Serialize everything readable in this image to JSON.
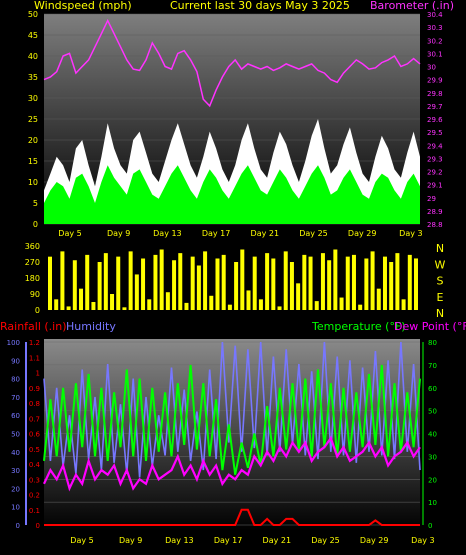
{
  "colors": {
    "wind_gust": "#ffffff",
    "wind_avg": "#00ff00",
    "barometer": "#ff33ff",
    "direction": "#ffff00",
    "rain": "#ff0000",
    "humidity": "#7777ff",
    "temperature": "#00ff00",
    "dew_point": "#ff00ff",
    "title": "#ffff00",
    "axis_text": "#ffff00"
  },
  "chart_data": [
    {
      "type": "area",
      "title": "Current last 30 days May 3 2025",
      "left_label": "Windspeed (mph)",
      "right_label": "Barometer (.in)",
      "x_ticks": [
        "Day 5",
        "Day 9",
        "Day 13",
        "Day 17",
        "Day 21",
        "Day 25",
        "Day 29",
        "Day 3"
      ],
      "y_left_ticks": [
        "0",
        "5",
        "10",
        "15",
        "20",
        "25",
        "30",
        "35",
        "40",
        "45",
        "50"
      ],
      "y_left_range": [
        0,
        50
      ],
      "y_right_ticks": [
        "28.8",
        "28.9",
        "29",
        "29.1",
        "29.2",
        "29.3",
        "29.4",
        "29.5",
        "29.6",
        "29.7",
        "29.8",
        "29.9",
        "30",
        "30.1",
        "30.2",
        "30.3",
        "30.4"
      ],
      "y_right_range": [
        28.8,
        30.4
      ],
      "series": [
        {
          "key": "gust",
          "values": [
            8,
            12,
            16,
            14,
            10,
            18,
            20,
            14,
            9,
            16,
            24,
            18,
            14,
            12,
            20,
            22,
            17,
            12,
            10,
            15,
            20,
            24,
            19,
            14,
            11,
            16,
            22,
            18,
            13,
            10,
            14,
            20,
            24,
            18,
            13,
            11,
            17,
            22,
            19,
            14,
            10,
            15,
            21,
            25,
            18,
            12,
            14,
            19,
            23,
            17,
            12,
            10,
            16,
            21,
            18,
            13,
            11,
            17,
            22,
            16
          ]
        },
        {
          "key": "average",
          "values": [
            5,
            8,
            10,
            9,
            6,
            11,
            12,
            9,
            5,
            10,
            14,
            11,
            9,
            7,
            12,
            13,
            10,
            7,
            6,
            9,
            12,
            14,
            11,
            8,
            6,
            10,
            13,
            11,
            8,
            6,
            9,
            12,
            14,
            11,
            8,
            7,
            10,
            13,
            11,
            8,
            6,
            9,
            12,
            14,
            11,
            7,
            8,
            11,
            13,
            10,
            7,
            6,
            10,
            12,
            11,
            8,
            6,
            10,
            12,
            9
          ]
        },
        {
          "key": "barometer",
          "values": [
            29.9,
            29.92,
            29.96,
            30.08,
            30.1,
            29.95,
            30.0,
            30.05,
            30.15,
            30.25,
            30.35,
            30.25,
            30.15,
            30.05,
            29.98,
            29.97,
            30.05,
            30.18,
            30.1,
            30.0,
            29.98,
            30.1,
            30.12,
            30.05,
            29.96,
            29.75,
            29.7,
            29.82,
            29.92,
            30.0,
            30.05,
            29.98,
            30.02,
            30.0,
            29.98,
            30.0,
            29.97,
            29.99,
            30.02,
            30.0,
            29.98,
            30.0,
            30.02,
            29.97,
            29.95,
            29.9,
            29.88,
            29.95,
            30.0,
            30.05,
            30.02,
            29.98,
            29.99,
            30.03,
            30.05,
            30.08,
            30.0,
            30.02,
            30.06,
            30.02
          ]
        }
      ]
    },
    {
      "type": "area",
      "left_ticks": [
        "360",
        "270",
        "180",
        "90",
        "0"
      ],
      "y_range": [
        0,
        360
      ],
      "right_labels": [
        "N",
        "W",
        "S",
        "E",
        "N"
      ],
      "series": [
        {
          "key": "direction",
          "values": [
            300,
            60,
            330,
            20,
            280,
            120,
            310,
            45,
            270,
            320,
            90,
            300,
            15,
            330,
            200,
            290,
            60,
            310,
            340,
            100,
            280,
            320,
            40,
            300,
            250,
            330,
            80,
            290,
            310,
            30,
            270,
            340,
            110,
            300,
            60,
            320,
            290,
            20,
            330,
            270,
            150,
            310,
            300,
            50,
            320,
            280,
            340,
            70,
            300,
            310,
            30,
            290,
            330,
            120,
            300,
            270,
            320,
            60,
            310,
            290
          ]
        }
      ]
    },
    {
      "type": "line",
      "left_label": "Rainfall (.in)",
      "left2_label": "Humidity",
      "right_label": "Temperature (°F)",
      "right2_label": "Dew Point (°F)",
      "x_ticks": [
        "Day 5",
        "Day 9",
        "Day 13",
        "Day 17",
        "Day 21",
        "Day 25",
        "Day 29",
        "Day 3"
      ],
      "rain_ticks": [
        "0",
        "0.1",
        "0.2",
        "0.3",
        "0.4",
        "0.5",
        "0.6",
        "0.7",
        "0.8",
        "0.9",
        "1",
        "1.1",
        "1.2"
      ],
      "rain_range": [
        0,
        1.2
      ],
      "humidity_ticks": [
        "0",
        "10",
        "20",
        "30",
        "40",
        "50",
        "60",
        "70",
        "80",
        "90",
        "100"
      ],
      "humidity_range": [
        0,
        100
      ],
      "temp_ticks": [
        "0",
        "10",
        "20",
        "30",
        "40",
        "50",
        "60",
        "70",
        "80"
      ],
      "temp_range": [
        0,
        80
      ],
      "series": [
        {
          "key": "rain",
          "values": [
            0,
            0,
            0,
            0,
            0,
            0,
            0,
            0,
            0,
            0,
            0,
            0,
            0,
            0,
            0,
            0,
            0,
            0,
            0,
            0,
            0,
            0,
            0,
            0,
            0,
            0,
            0,
            0,
            0,
            0,
            0,
            0.1,
            0.1,
            0,
            0,
            0.04,
            0,
            0,
            0.04,
            0.04,
            0,
            0,
            0,
            0,
            0,
            0,
            0,
            0,
            0,
            0,
            0,
            0,
            0.03,
            0,
            0,
            0,
            0,
            0,
            0,
            0
          ]
        },
        {
          "key": "humidity",
          "values": [
            80,
            35,
            75,
            32,
            60,
            28,
            85,
            36,
            70,
            30,
            88,
            34,
            66,
            28,
            80,
            26,
            70,
            32,
            60,
            38,
            86,
            40,
            74,
            35,
            62,
            30,
            85,
            36,
            100,
            45,
            98,
            40,
            96,
            42,
            100,
            38,
            92,
            40,
            96,
            44,
            88,
            38,
            84,
            36,
            100,
            40,
            92,
            38,
            90,
            34,
            86,
            40,
            95,
            38,
            90,
            36,
            100,
            40,
            88,
            30
          ]
        },
        {
          "key": "temperature",
          "values": [
            28,
            55,
            30,
            60,
            32,
            62,
            34,
            66,
            30,
            60,
            28,
            58,
            34,
            68,
            30,
            64,
            28,
            60,
            32,
            58,
            30,
            62,
            35,
            70,
            33,
            62,
            30,
            55,
            24,
            44,
            22,
            36,
            25,
            40,
            26,
            52,
            30,
            60,
            33,
            62,
            32,
            64,
            30,
            68,
            34,
            62,
            30,
            60,
            32,
            58,
            34,
            66,
            35,
            70,
            30,
            62,
            32,
            58,
            34,
            64
          ]
        },
        {
          "key": "dew_point",
          "values": [
            18,
            24,
            20,
            26,
            16,
            22,
            18,
            28,
            20,
            24,
            22,
            26,
            18,
            24,
            16,
            20,
            18,
            26,
            20,
            22,
            24,
            30,
            22,
            26,
            20,
            28,
            22,
            26,
            18,
            22,
            20,
            24,
            22,
            30,
            26,
            32,
            28,
            34,
            30,
            36,
            32,
            36,
            28,
            32,
            34,
            38,
            30,
            34,
            28,
            30,
            32,
            36,
            30,
            34,
            26,
            30,
            32,
            36,
            30,
            34
          ]
        }
      ]
    }
  ]
}
